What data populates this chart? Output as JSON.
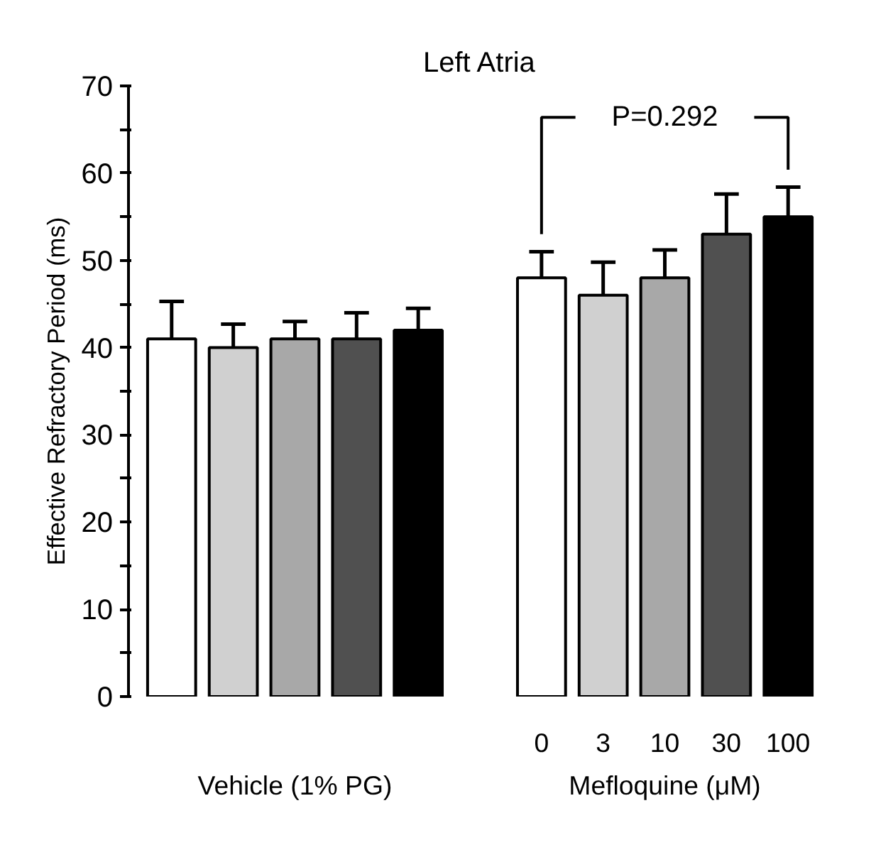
{
  "chart_data": {
    "type": "bar",
    "title": "Left Atria",
    "ylabel": "Effective Refractory Period (ms)",
    "categories": [
      null,
      null,
      null,
      null,
      null,
      null,
      "0",
      "3",
      "10",
      "30",
      "100"
    ],
    "values": [
      41,
      40,
      41,
      41,
      42,
      null,
      48,
      46,
      48,
      53,
      55
    ],
    "colors": [
      "#ffffff",
      "#d0d0d0",
      "#a8a8a8",
      "#505050",
      "#000000",
      "#ffffff",
      "#ffffff",
      "#d0d0d0",
      "#a8a8a8",
      "#505050",
      "#000000"
    ],
    "errors": [
      [
        41,
        45.3
      ],
      [
        40,
        42.7
      ],
      [
        41,
        43
      ],
      [
        41,
        44
      ],
      [
        42,
        44.5
      ],
      null,
      [
        48,
        51
      ],
      [
        46,
        49.8
      ],
      [
        48,
        51.2
      ],
      [
        53,
        57.6
      ],
      [
        55,
        58.4
      ]
    ],
    "ylim": [
      0,
      70
    ],
    "yticks": [
      0,
      {
        "value": 5,
        "label": null
      },
      10,
      {
        "value": 15,
        "label": null
      },
      20,
      {
        "value": 25,
        "label": null
      },
      30,
      {
        "value": 35,
        "label": null
      },
      40,
      {
        "value": 45,
        "label": null
      },
      50,
      {
        "value": 55,
        "label": null
      },
      60,
      {
        "value": 65,
        "label": null
      },
      70
    ],
    "annotations": [
      "P=0.292",
      "Vehicle (1% PG)",
      "Mefloquine (μM)"
    ],
    "grid": false
  }
}
